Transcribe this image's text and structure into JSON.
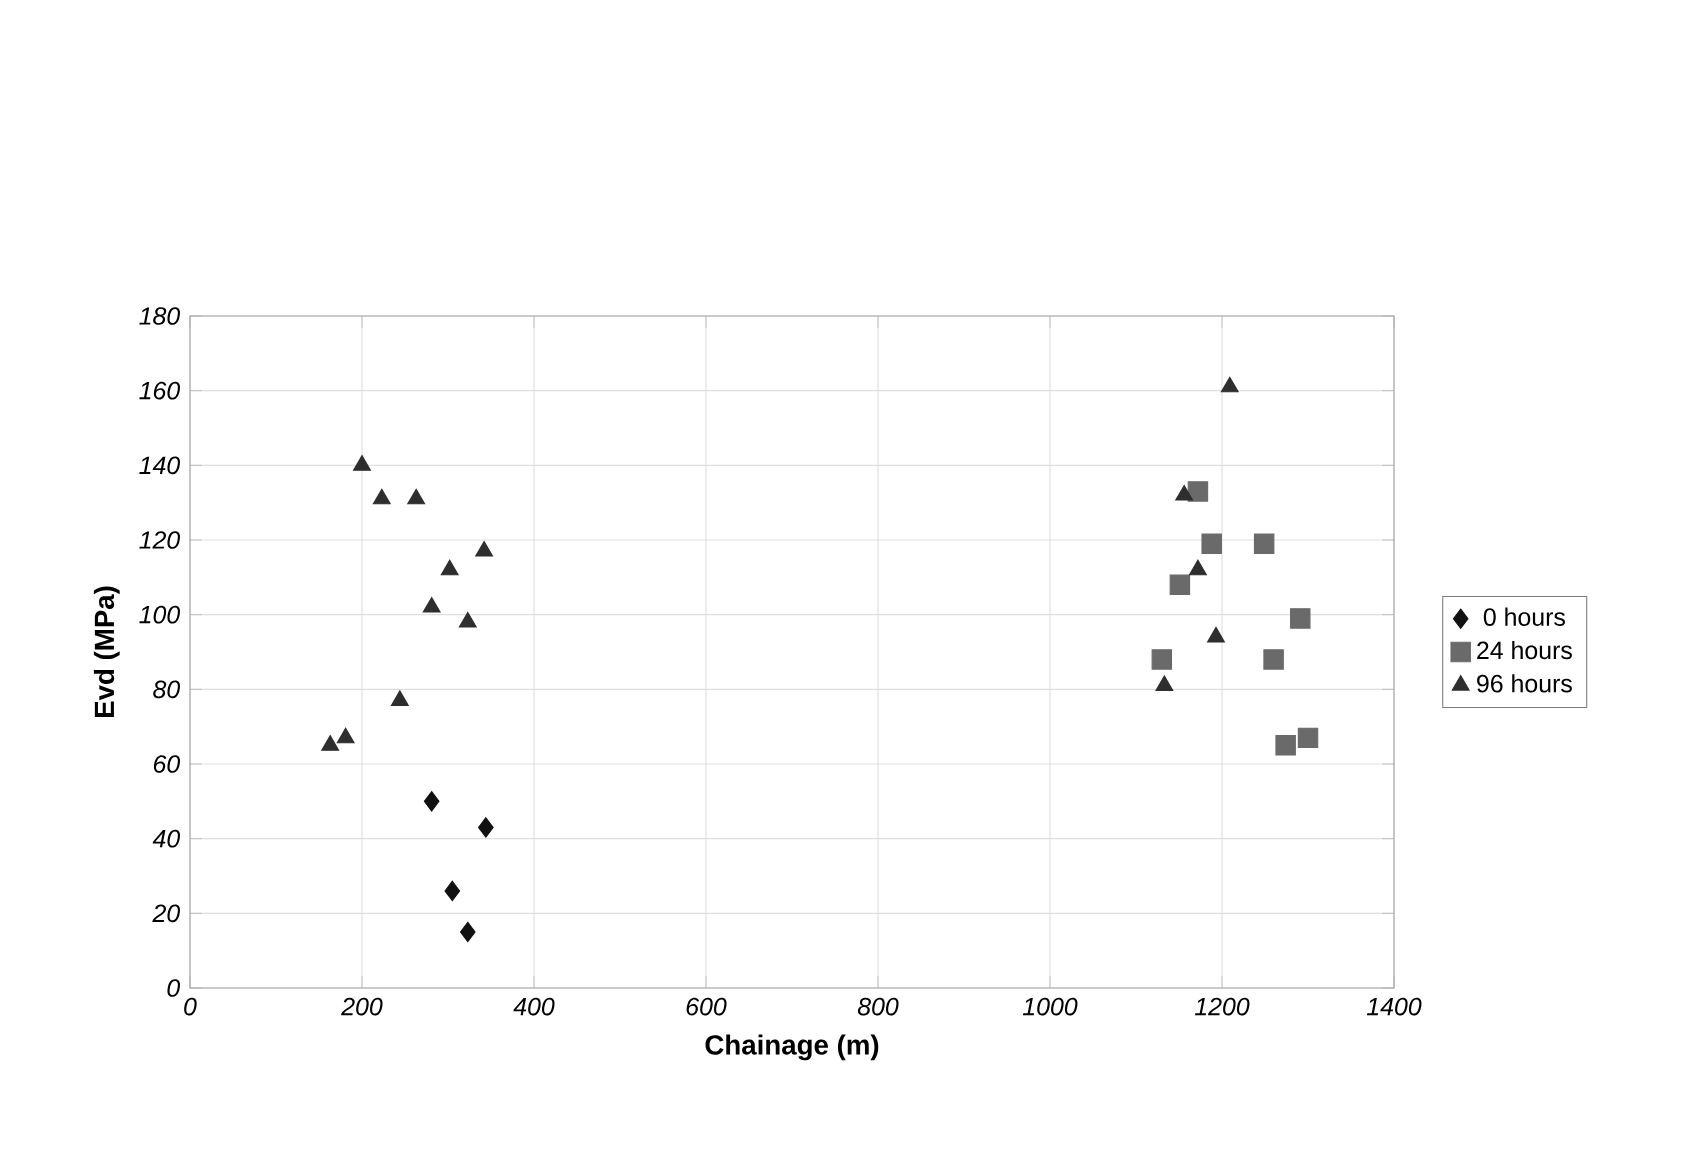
{
  "chart_data": {
    "type": "scatter",
    "xlabel": "Chainage (m)",
    "ylabel": "Evd (MPa)",
    "xlim": [
      0,
      1400
    ],
    "xticks": [
      0,
      200,
      400,
      600,
      800,
      1000,
      1200,
      1400
    ],
    "ylim": [
      0,
      180
    ],
    "yticks": [
      0,
      20,
      40,
      60,
      80,
      100,
      120,
      140,
      160,
      180
    ],
    "grid": true,
    "legend": "right",
    "series": [
      {
        "name": "0 hours",
        "color": "#111111",
        "marker": "diamond",
        "x": [
          281,
          344,
          305,
          323
        ],
        "values": [
          50,
          43,
          26,
          15
        ]
      },
      {
        "name": "24 hours",
        "color": "#6a6a6a",
        "marker": "square",
        "x": [
          1130,
          1151,
          1172,
          1188,
          1249,
          1260,
          1291,
          1274,
          1300
        ],
        "values": [
          88,
          108,
          133,
          119,
          119,
          88,
          99,
          65,
          67
        ]
      },
      {
        "name": "96 hours",
        "color": "#2e2e2e",
        "marker": "triangle",
        "x": [
          200,
          223,
          263,
          342,
          302,
          281,
          323,
          244,
          181,
          163,
          1209,
          1156,
          1172,
          1193,
          1133
        ],
        "values": [
          140,
          131,
          131,
          117,
          112,
          102,
          98,
          77,
          67,
          65,
          161,
          132,
          112,
          94,
          81
        ]
      }
    ]
  }
}
